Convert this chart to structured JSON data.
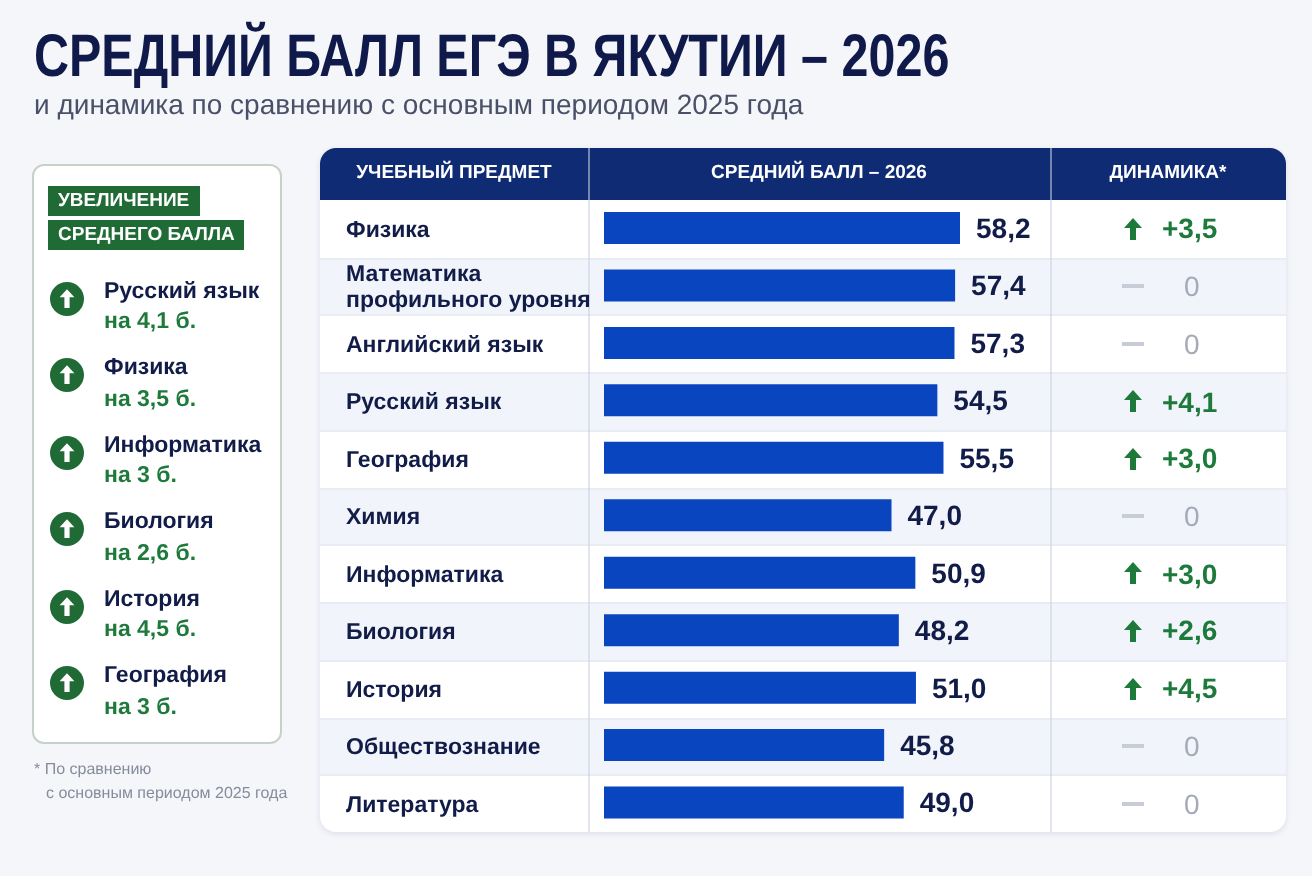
{
  "chart_data": {
    "type": "bar",
    "orientation": "horizontal",
    "title": "СРЕДНИЙ БАЛЛ ЕГЭ В ЯКУТИИ – 2026",
    "subtitle": "и динамика по сравнению с основным периодом 2025 года",
    "ylabel": "УЧЕБНЫЙ ПРЕДМЕТ",
    "xlabel": "СРЕДНИЙ БАЛЛ – 2026",
    "categories": [
      "Физика",
      "Математика профильного уровня",
      "Английский язык",
      "Русский язык",
      "География",
      "Химия",
      "Информатика",
      "Биология",
      "История",
      "Обществознание",
      "Литература"
    ],
    "values": [
      58.2,
      57.4,
      57.3,
      54.5,
      55.5,
      47.0,
      50.9,
      48.2,
      51.0,
      45.8,
      49.0
    ],
    "value_labels": [
      "58,2",
      "57,4",
      "57,3",
      "54,5",
      "55,5",
      "47,0",
      "50,9",
      "48,2",
      "51,0",
      "45,8",
      "49,0"
    ],
    "color": "#0a45c0",
    "annotations": [
      "ДИНАМИКА*",
      "+3,5",
      "0",
      "0",
      "+4,1",
      "+3,0",
      "0",
      "+3,0",
      "+2,6",
      "+4,5",
      "0",
      "0",
      "УВЕЛИЧЕНИЕ СРЕДНЕГО БАЛЛА",
      "Русский язык",
      "на 4,1 б.",
      "Физика",
      "на 3,5 б.",
      "Информатика",
      "на 3 б.",
      "Биология",
      "на 2,6 б.",
      "История",
      "на 4,5 б.",
      "География",
      "на 3 б.",
      "* По сравнению\nс основным периодом 2025 года"
    ]
  }
}
